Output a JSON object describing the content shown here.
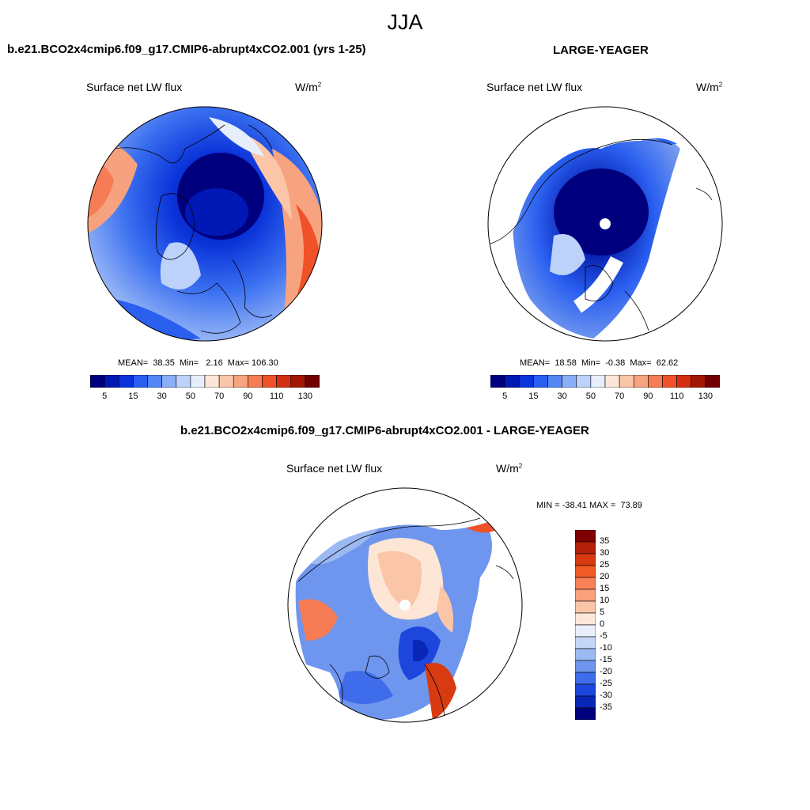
{
  "season": "JJA",
  "top_left": {
    "title": "b.e21.BCO2x4cmip6.f09_g17.CMIP6-abrupt4xCO2.001 (yrs 1-25)",
    "variable": "Surface net LW flux",
    "units_base": "W/m",
    "units_exp": "2",
    "stats_text": "MEAN=  38.35  Min=   2.16  Max= 106.30",
    "mean": 38.35,
    "min": 2.16,
    "max": 106.3
  },
  "top_right": {
    "title": "LARGE-YEAGER",
    "variable": "Surface net LW flux",
    "units_base": "W/m",
    "units_exp": "2",
    "stats_text": "MEAN=  18.58  Min=  -0.38  Max=  62.62",
    "mean": 18.58,
    "min": -0.38,
    "max": 62.62
  },
  "diff": {
    "title": "b.e21.BCO2x4cmip6.f09_g17.CMIP6-abrupt4xCO2.001 - LARGE-YEAGER",
    "variable": "Surface net LW flux",
    "units_base": "W/m",
    "units_exp": "2",
    "stats_text": "MIN = -38.41 MAX =  73.89",
    "min": -38.41,
    "max": 73.89
  },
  "abs_colorbar": {
    "labels": [
      "5",
      "15",
      "30",
      "50",
      "70",
      "90",
      "110",
      "130"
    ],
    "colors": [
      "#00007f",
      "#0019b5",
      "#0a33d9",
      "#2a5ff0",
      "#5387f5",
      "#8aaef7",
      "#bcd2fa",
      "#e6eefc",
      "#fde6d6",
      "#fbc5a8",
      "#f8a37f",
      "#f57c54",
      "#ef5128",
      "#d42f10",
      "#a31707",
      "#700000"
    ]
  },
  "diff_colorbar": {
    "labels": [
      "35",
      "30",
      "25",
      "20",
      "15",
      "10",
      "5",
      "0",
      "-5",
      "-10",
      "-15",
      "-20",
      "-25",
      "-30",
      "-35"
    ],
    "colors": [
      "#7f0000",
      "#b5200a",
      "#d83a12",
      "#f25a25",
      "#f88155",
      "#f9a07d",
      "#fbc5a8",
      "#fde7d8",
      "#eaf0fb",
      "#c5d6f7",
      "#9cb9f2",
      "#6e96ee",
      "#3f6cea",
      "#1c46dc",
      "#0a26b5",
      "#00007f"
    ]
  }
}
